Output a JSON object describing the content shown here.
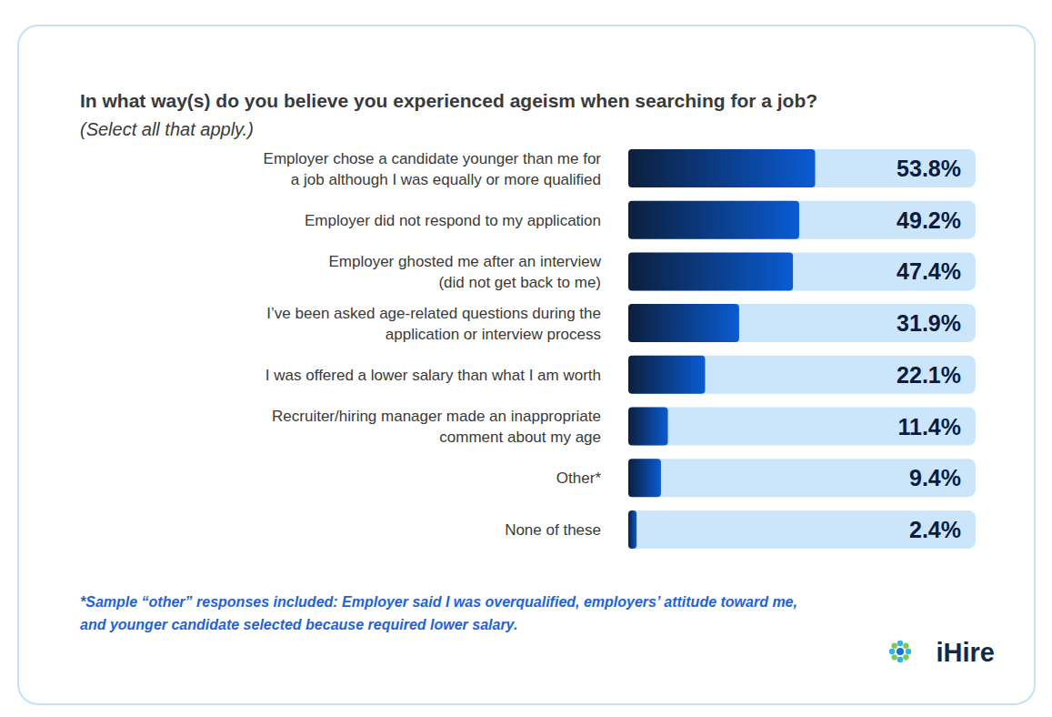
{
  "chart_data": {
    "type": "bar",
    "orientation": "horizontal",
    "title": "In what way(s) do you believe you experienced ageism when searching for a job?",
    "subtitle": "(Select all that apply.)",
    "categories": [
      "Employer chose a candidate younger than me for\na job although I was equally or more qualified",
      "Employer did not respond to my application",
      "Employer ghosted me after an interview\n(did not get back to me)",
      "I’ve been asked age-related questions during the\napplication or interview process",
      "I was offered a lower salary than what I am worth",
      "Recruiter/hiring manager made an inappropriate\ncomment about my age",
      "Other*",
      "None of these"
    ],
    "values": [
      53.8,
      49.2,
      47.4,
      31.9,
      22.1,
      11.4,
      9.4,
      2.4
    ],
    "value_labels": [
      "53.8%",
      "49.2%",
      "47.4%",
      "31.9%",
      "22.1%",
      "11.4%",
      "9.4%",
      "2.4%"
    ],
    "xlim": [
      0,
      100
    ],
    "tick_labels": false,
    "data_labels": true,
    "color": "#0a5bd3",
    "annotations": [
      "*Sample “other” responses included: Employer said I was overqualified, employers’ attitude toward me,\nand younger candidate selected because required lower salary.",
      "iHire"
    ]
  }
}
